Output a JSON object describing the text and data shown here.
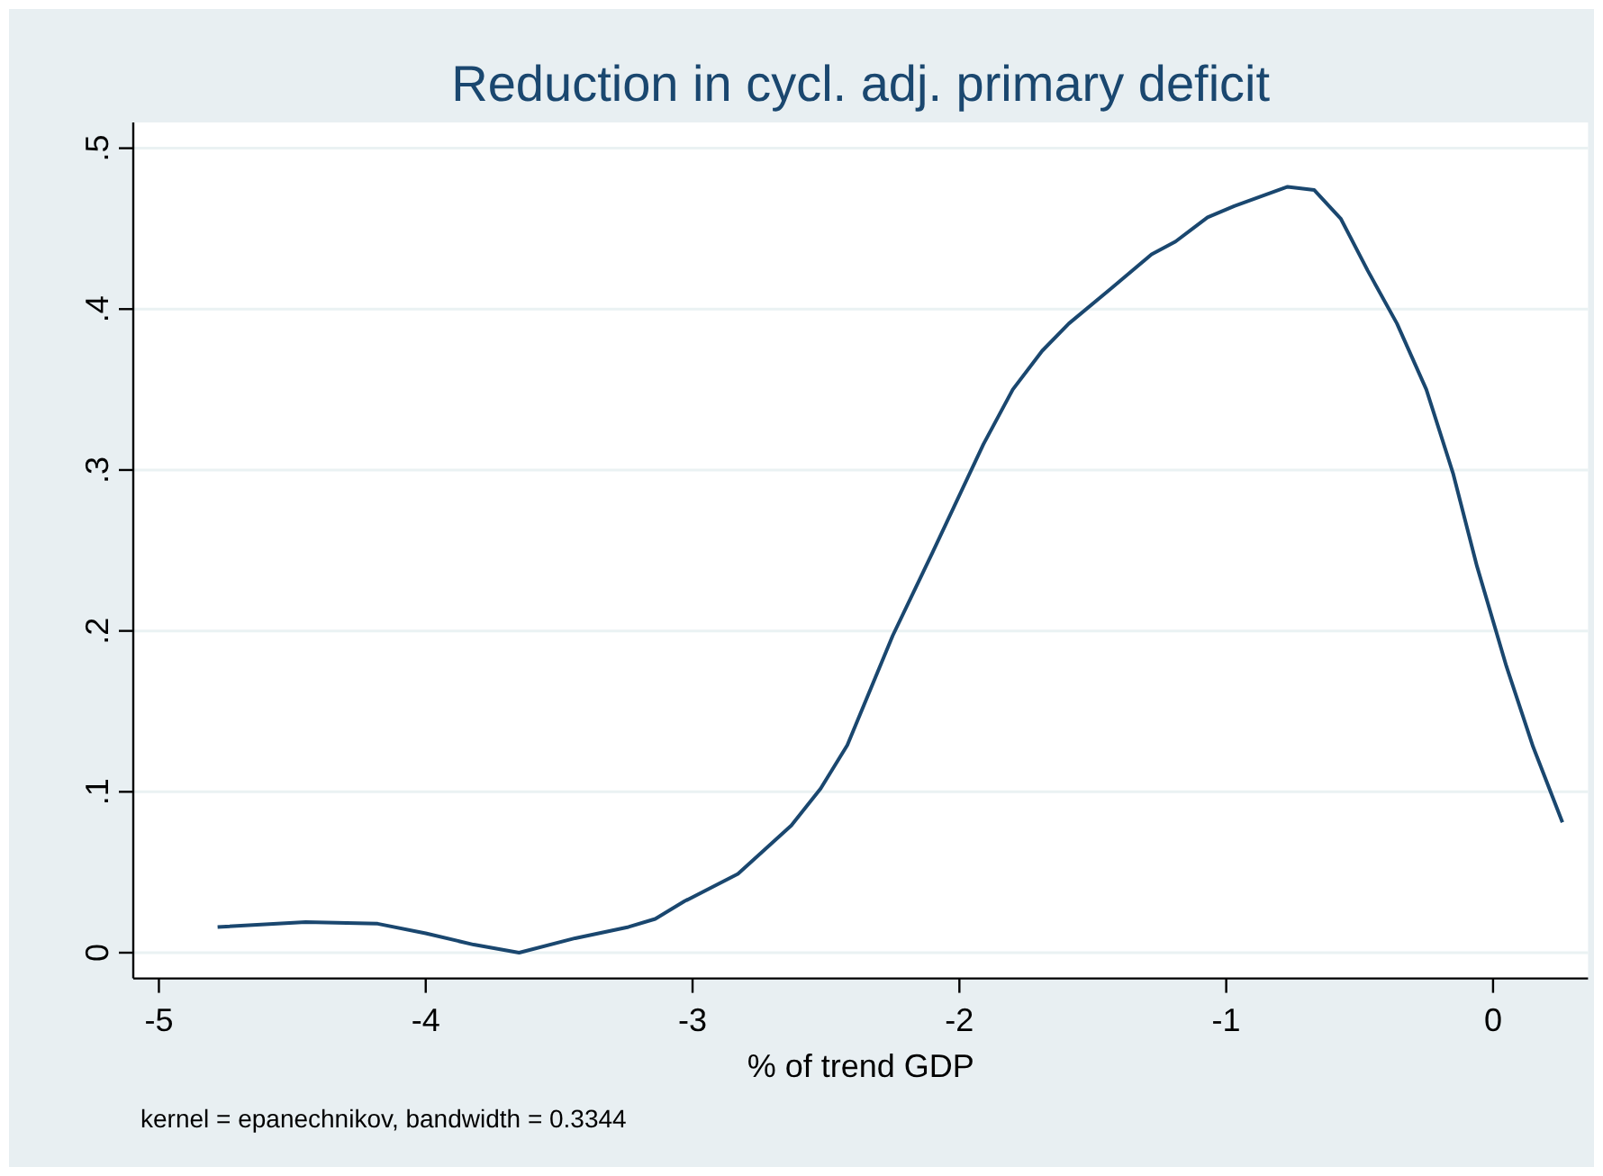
{
  "chart_data": {
    "type": "line",
    "title": "Reduction in cycl. adj. primary deficit",
    "xlabel": "% of trend GDP",
    "annotations": [
      "kernel = epanechnikov, bandwidth = 0.3344"
    ],
    "series": [
      {
        "color": "#1a476f",
        "x": [
          -4.78,
          -4.45,
          -4.18,
          -4.0,
          -3.82,
          -3.65,
          -3.44,
          -3.24,
          -3.14,
          -3.03,
          -2.83,
          -2.63,
          -2.52,
          -2.42,
          -2.25,
          -2.1,
          -1.91,
          -1.8,
          -1.69,
          -1.59,
          -1.43,
          -1.28,
          -1.19,
          -1.07,
          -0.97,
          -0.87,
          -0.77,
          -0.67,
          -0.57,
          -0.47,
          -0.36,
          -0.25,
          -0.15,
          -0.06,
          0.05,
          0.15,
          0.26
        ],
        "values": [
          0.016,
          0.019,
          0.018,
          0.012,
          0.005,
          0.0,
          0.009,
          0.016,
          0.021,
          0.032,
          0.049,
          0.079,
          0.102,
          0.129,
          0.197,
          0.249,
          0.316,
          0.35,
          0.374,
          0.391,
          0.413,
          0.434,
          0.442,
          0.457,
          0.464,
          0.47,
          0.476,
          0.474,
          0.456,
          0.424,
          0.391,
          0.35,
          0.298,
          0.24,
          0.178,
          0.128,
          0.081
        ]
      }
    ],
    "xlim": [
      -5.096,
      0.356
    ],
    "ylim": [
      -0.016,
      0.516
    ],
    "xticks": [
      -5,
      -4,
      -3,
      -2,
      -1,
      0
    ],
    "yticks": [
      0,
      {
        "value": 0.1,
        "label": ".1"
      },
      {
        "value": 0.2,
        "label": ".2"
      },
      {
        "value": 0.3,
        "label": ".3"
      },
      {
        "value": 0.4,
        "label": ".4"
      },
      {
        "value": 0.5,
        "label": ".5"
      }
    ],
    "grid": "y",
    "line_style": "solid",
    "marker": "none"
  }
}
